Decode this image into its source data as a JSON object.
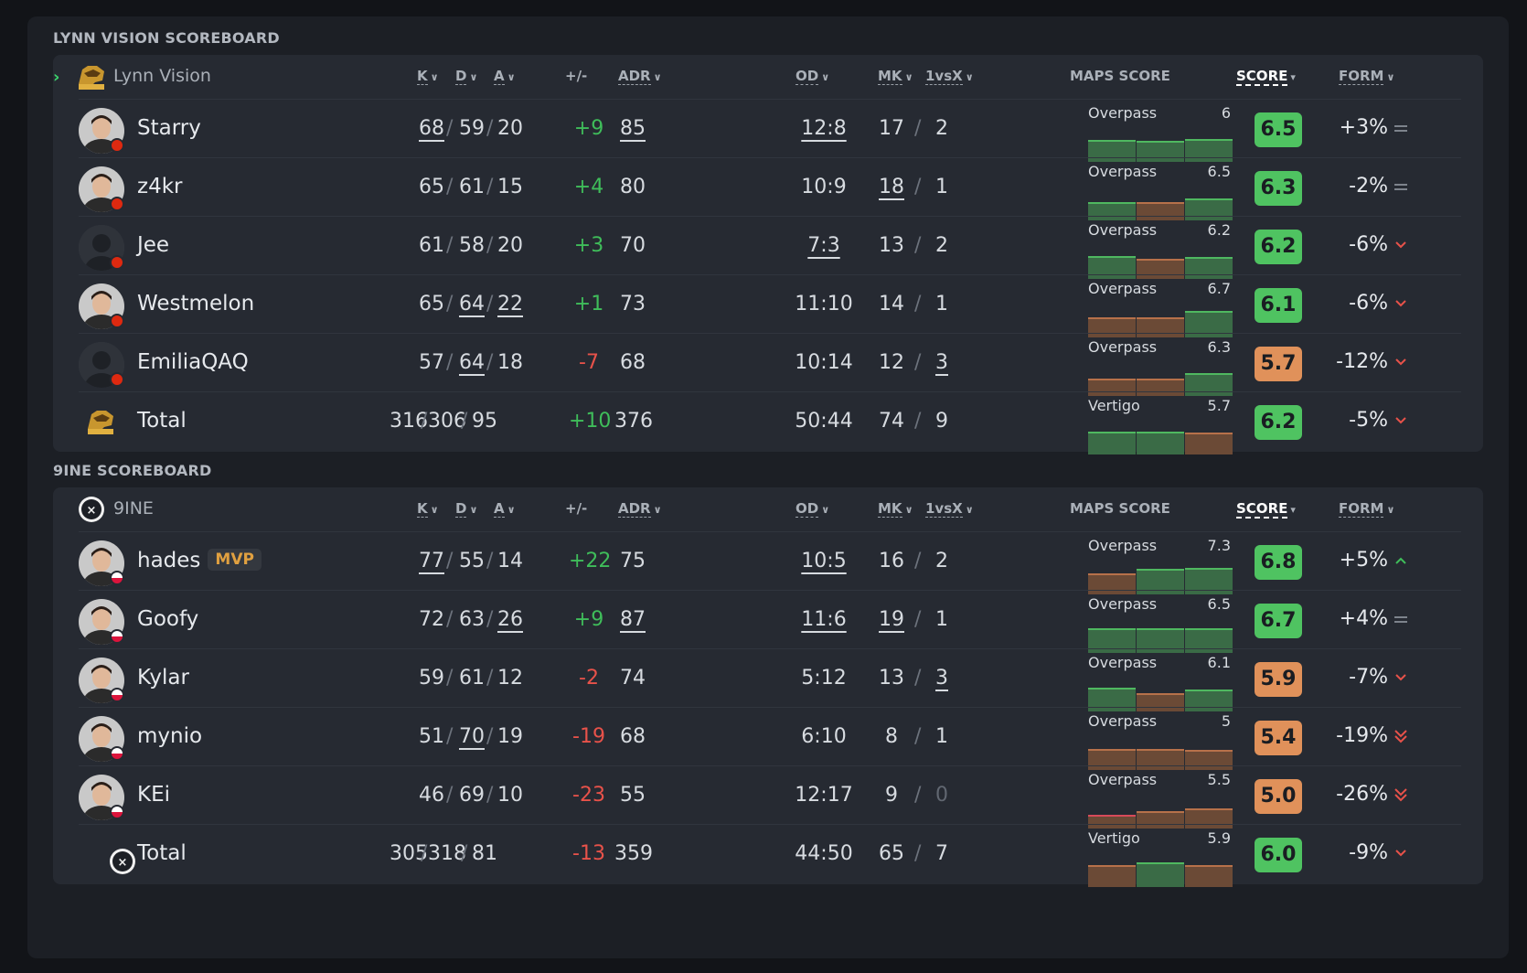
{
  "colors": {
    "green_box": "#4fc361",
    "orange_box": "#e0915a",
    "bar_green": "#3a6b46",
    "bar_green_top": "#4fb860",
    "bar_brown": "#6b4a36",
    "bar_brown_top": "#b7714a",
    "bar_red_top": "#d84a5a"
  },
  "header": {
    "k": "K",
    "d": "D",
    "a": "A",
    "pm": "+/-",
    "adr": "ADR",
    "od": "OD",
    "mk": "MK",
    "clutch": "1vsX",
    "maps": "MAPS SCORE",
    "score": "SCORE",
    "form": "FORM"
  },
  "teams": [
    {
      "section_title": "LYNN VISION SCOREBOARD",
      "name": "Lynn Vision",
      "logo": "lynn-vision-logo",
      "players": [
        {
          "name": "Starry",
          "flag": "cn",
          "k": "68",
          "d": "59",
          "a": "20",
          "uk": true,
          "ud": false,
          "ua": false,
          "pm": "+9",
          "pm_sign": "pos",
          "adr": "85",
          "uadr": true,
          "od": "12:8",
          "uod": true,
          "mk": "17",
          "umk": false,
          "clutch": "2",
          "uclutch": false,
          "map": "Overpass",
          "map_score": "6",
          "bars": [
            [
              "g",
              0.8
            ],
            [
              "g",
              0.75
            ],
            [
              "g",
              0.82
            ]
          ],
          "score": "6.5",
          "score_color": "green",
          "form": "+3%",
          "form_icon": "equal"
        },
        {
          "name": "z4kr",
          "flag": "cn",
          "k": "65",
          "d": "61",
          "a": "15",
          "uk": false,
          "ud": false,
          "ua": false,
          "pm": "+4",
          "pm_sign": "pos",
          "adr": "80",
          "uadr": false,
          "od": "10:9",
          "uod": false,
          "mk": "18",
          "umk": true,
          "clutch": "1",
          "uclutch": false,
          "map": "Overpass",
          "map_score": "6.5",
          "bars": [
            [
              "g",
              0.65
            ],
            [
              "b",
              0.65
            ],
            [
              "g",
              0.8
            ]
          ],
          "score": "6.3",
          "score_color": "green",
          "form": "-2%",
          "form_icon": "equal"
        },
        {
          "name": "Jee",
          "flag": "cn",
          "k": "61",
          "d": "58",
          "a": "20",
          "uk": false,
          "ud": false,
          "ua": false,
          "pm": "+3",
          "pm_sign": "pos",
          "adr": "70",
          "uadr": false,
          "od": "7:3",
          "uod": true,
          "mk": "13",
          "umk": false,
          "clutch": "2",
          "uclutch": false,
          "map": "Overpass",
          "map_score": "6.2",
          "bars": [
            [
              "g",
              0.82
            ],
            [
              "b",
              0.72
            ],
            [
              "g",
              0.78
            ]
          ],
          "score": "6.2",
          "score_color": "green",
          "form": "-6%",
          "form_icon": "down"
        },
        {
          "name": "Westmelon",
          "flag": "cn",
          "k": "65",
          "d": "64",
          "a": "22",
          "uk": false,
          "ud": true,
          "ua": true,
          "pm": "+1",
          "pm_sign": "pos",
          "adr": "73",
          "uadr": false,
          "od": "11:10",
          "uod": false,
          "mk": "14",
          "umk": false,
          "clutch": "1",
          "uclutch": false,
          "map": "Overpass",
          "map_score": "6.7",
          "bars": [
            [
              "b",
              0.72
            ],
            [
              "b",
              0.72
            ],
            [
              "g",
              0.95
            ]
          ],
          "score": "6.1",
          "score_color": "green",
          "form": "-6%",
          "form_icon": "down"
        },
        {
          "name": "EmiliaQAQ",
          "flag": "cn",
          "k": "57",
          "d": "64",
          "a": "18",
          "uk": false,
          "ud": true,
          "ua": false,
          "pm": "-7",
          "pm_sign": "neg",
          "adr": "68",
          "uadr": false,
          "od": "10:14",
          "uod": false,
          "mk": "12",
          "umk": false,
          "clutch": "3",
          "uclutch": true,
          "map": "Overpass",
          "map_score": "6.3",
          "bars": [
            [
              "b",
              0.62
            ],
            [
              "b",
              0.62
            ],
            [
              "g",
              0.82
            ]
          ],
          "score": "5.7",
          "score_color": "orange",
          "form": "-12%",
          "form_icon": "down"
        }
      ],
      "total": {
        "label": "Total",
        "k": "316",
        "d": "306",
        "a": "95",
        "pm": "+10",
        "pm_sign": "pos",
        "adr": "376",
        "od": "50:44",
        "mk": "74",
        "clutch": "9",
        "map": "Vertigo",
        "map_score": "5.7",
        "bars": [
          [
            "g",
            0.82
          ],
          [
            "g",
            0.82
          ],
          [
            "b",
            0.78
          ]
        ],
        "score": "6.2",
        "score_color": "green",
        "form": "-5%",
        "form_icon": "down"
      }
    },
    {
      "section_title": "9INE SCOREBOARD",
      "name": "9INE",
      "logo": "9ine-logo",
      "players": [
        {
          "name": "hades",
          "mvp": "MVP",
          "flag": "pl",
          "k": "77",
          "d": "55",
          "a": "14",
          "uk": true,
          "ud": false,
          "ua": false,
          "pm": "+22",
          "pm_sign": "pos",
          "adr": "75",
          "uadr": false,
          "od": "10:5",
          "uod": true,
          "mk": "16",
          "umk": false,
          "clutch": "2",
          "uclutch": false,
          "map": "Overpass",
          "map_score": "7.3",
          "bars": [
            [
              "b",
              0.75
            ],
            [
              "g",
              0.92
            ],
            [
              "g",
              0.98
            ]
          ],
          "score": "6.8",
          "score_color": "green",
          "form": "+5%",
          "form_icon": "up"
        },
        {
          "name": "Goofy",
          "flag": "pl",
          "k": "72",
          "d": "63",
          "a": "26",
          "uk": false,
          "ud": false,
          "ua": true,
          "pm": "+9",
          "pm_sign": "pos",
          "adr": "87",
          "uadr": true,
          "od": "11:6",
          "uod": true,
          "mk": "19",
          "umk": true,
          "clutch": "1",
          "uclutch": false,
          "map": "Overpass",
          "map_score": "6.5",
          "bars": [
            [
              "g",
              0.9
            ],
            [
              "g",
              0.9
            ],
            [
              "g",
              0.88
            ]
          ],
          "score": "6.7",
          "score_color": "green",
          "form": "+4%",
          "form_icon": "equal"
        },
        {
          "name": "Kylar",
          "flag": "pl",
          "k": "59",
          "d": "61",
          "a": "12",
          "uk": false,
          "ud": false,
          "ua": false,
          "pm": "-2",
          "pm_sign": "neg",
          "adr": "74",
          "uadr": false,
          "od": "5:12",
          "uod": false,
          "mk": "13",
          "umk": false,
          "clutch": "3",
          "uclutch": true,
          "map": "Overpass",
          "map_score": "6.1",
          "bars": [
            [
              "g",
              0.85
            ],
            [
              "b",
              0.65
            ],
            [
              "g",
              0.8
            ]
          ],
          "score": "5.9",
          "score_color": "orange",
          "form": "-7%",
          "form_icon": "down"
        },
        {
          "name": "mynio",
          "flag": "pl",
          "k": "51",
          "d": "70",
          "a": "19",
          "uk": false,
          "ud": true,
          "ua": false,
          "pm": "-19",
          "pm_sign": "neg",
          "adr": "68",
          "uadr": false,
          "od": "6:10",
          "uod": false,
          "mk": "8",
          "umk": false,
          "clutch": "1",
          "uclutch": false,
          "map": "Overpass",
          "map_score": "5",
          "bars": [
            [
              "b",
              0.75
            ],
            [
              "b",
              0.75
            ],
            [
              "b",
              0.72
            ]
          ],
          "score": "5.4",
          "score_color": "orange",
          "form": "-19%",
          "form_icon": "double-down"
        },
        {
          "name": "KEi",
          "flag": "pl",
          "k": "46",
          "d": "69",
          "a": "10",
          "uk": false,
          "ud": false,
          "ua": false,
          "pm": "-23",
          "pm_sign": "neg",
          "adr": "55",
          "uadr": false,
          "od": "12:17",
          "uod": false,
          "mk": "9",
          "umk": false,
          "clutch": "0",
          "uclutch": false,
          "clutch_muted": true,
          "map": "Overpass",
          "map_score": "5.5",
          "bars": [
            [
              "r",
              0.45
            ],
            [
              "b",
              0.6
            ],
            [
              "b",
              0.72
            ]
          ],
          "score": "5.0",
          "score_color": "orange",
          "form": "-26%",
          "form_icon": "double-down"
        }
      ],
      "total": {
        "label": "Total",
        "k": "305",
        "d": "318",
        "a": "81",
        "pm": "-13",
        "pm_sign": "neg",
        "adr": "359",
        "od": "44:50",
        "mk": "65",
        "clutch": "7",
        "map": "Vertigo",
        "map_score": "5.9",
        "bars": [
          [
            "b",
            0.8
          ],
          [
            "g",
            0.88
          ],
          [
            "b",
            0.8
          ]
        ],
        "score": "6.0",
        "score_color": "green",
        "form": "-9%",
        "form_icon": "down"
      }
    }
  ]
}
